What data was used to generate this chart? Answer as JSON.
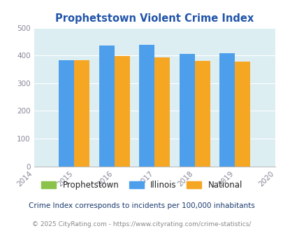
{
  "title": "Prophetstown Violent Crime Index",
  "years": [
    2015,
    2016,
    2017,
    2018,
    2019
  ],
  "xlim": [
    2014,
    2020
  ],
  "ylim": [
    0,
    500
  ],
  "yticks": [
    0,
    100,
    200,
    300,
    400,
    500
  ],
  "prophetstown": [
    0,
    0,
    0,
    0,
    0
  ],
  "illinois": [
    383,
    437,
    438,
    406,
    408
  ],
  "national": [
    383,
    397,
    394,
    381,
    379
  ],
  "illinois_color": "#4d9fec",
  "national_color": "#f5a623",
  "prophetstown_color": "#8bc34a",
  "title_color": "#2255aa",
  "background_color": "#ddeef3",
  "bar_width": 0.38,
  "legend_labels": [
    "Prophetstown",
    "Illinois",
    "National"
  ],
  "footnote1": "Crime Index corresponds to incidents per 100,000 inhabitants",
  "footnote2": "© 2025 CityRating.com - https://www.cityrating.com/crime-statistics/",
  "tick_color": "#888899",
  "grid_color": "#ffffff",
  "footnote1_color": "#1a3a6e",
  "footnote2_color": "#888888"
}
